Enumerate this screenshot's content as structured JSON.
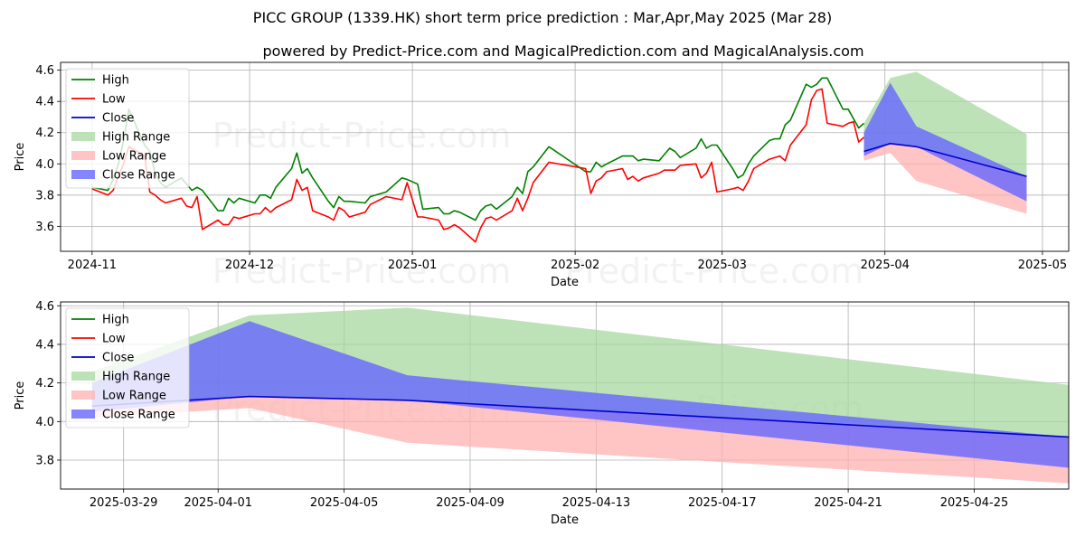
{
  "title": "PICC GROUP (1339.HK) short term price prediction : Mar,Apr,May 2025 (Mar 28)",
  "subtitle": "powered by Predict-Price.com and MagicalPrediction.com and MagicalAnalysis.com",
  "watermark": "Predict-Price.com",
  "colors": {
    "high": "#008000",
    "low": "#ff0000",
    "close": "#0000cc",
    "high_range": "#a8d8a0",
    "low_range": "#ffb0b0",
    "close_range": "#6666ff"
  },
  "legend": [
    "High",
    "Low",
    "Close",
    "High Range",
    "Low Range",
    "Close Range"
  ],
  "chart_data": [
    {
      "type": "line",
      "xlabel": "Date",
      "ylabel": "Price",
      "xlim": [
        "2024-10-26",
        "2025-05-06"
      ],
      "ylim": [
        3.44,
        4.65
      ],
      "grid": true,
      "legend_position": "upper-left",
      "x_ticks": [
        "2024-11-01",
        "2024-12-01",
        "2025-01-01",
        "2025-02-01",
        "2025-03-01",
        "2025-04-01",
        "2025-05-01"
      ],
      "x_tick_labels": [
        "2024-11",
        "2024-12",
        "2025-01",
        "2025-02",
        "2025-03",
        "2025-04",
        "2025-05"
      ],
      "y_ticks": [
        3.6,
        3.8,
        4.0,
        4.2,
        4.4,
        4.6
      ],
      "y_tick_labels": [
        "3.6",
        "3.8",
        "4.0",
        "4.2",
        "4.4",
        "4.6"
      ],
      "series": [
        {
          "name": "High",
          "x": [
            "2024-11-01",
            "2024-11-04",
            "2024-11-05",
            "2024-11-06",
            "2024-11-07",
            "2024-11-08",
            "2024-11-11",
            "2024-11-12",
            "2024-11-13",
            "2024-11-14",
            "2024-11-15",
            "2024-11-18",
            "2024-11-19",
            "2024-11-20",
            "2024-11-21",
            "2024-11-22",
            "2024-11-25",
            "2024-11-26",
            "2024-11-27",
            "2024-11-28",
            "2024-11-29",
            "2024-12-02",
            "2024-12-03",
            "2024-12-04",
            "2024-12-05",
            "2024-12-06",
            "2024-12-09",
            "2024-12-10",
            "2024-12-11",
            "2024-12-12",
            "2024-12-13",
            "2024-12-16",
            "2024-12-17",
            "2024-12-18",
            "2024-12-19",
            "2024-12-20",
            "2024-12-23",
            "2024-12-24",
            "2024-12-27",
            "2024-12-30",
            "2024-12-31",
            "2025-01-02",
            "2025-01-03",
            "2025-01-06",
            "2025-01-07",
            "2025-01-08",
            "2025-01-09",
            "2025-01-10",
            "2025-01-13",
            "2025-01-14",
            "2025-01-15",
            "2025-01-16",
            "2025-01-17",
            "2025-01-20",
            "2025-01-21",
            "2025-01-22",
            "2025-01-23",
            "2025-01-24",
            "2025-01-27",
            "2025-02-03",
            "2025-02-04",
            "2025-02-05",
            "2025-02-06",
            "2025-02-07",
            "2025-02-10",
            "2025-02-11",
            "2025-02-12",
            "2025-02-13",
            "2025-02-14",
            "2025-02-17",
            "2025-02-18",
            "2025-02-19",
            "2025-02-20",
            "2025-02-21",
            "2025-02-24",
            "2025-02-25",
            "2025-02-26",
            "2025-02-27",
            "2025-02-28",
            "2025-03-03",
            "2025-03-04",
            "2025-03-05",
            "2025-03-06",
            "2025-03-07",
            "2025-03-10",
            "2025-03-11",
            "2025-03-12",
            "2025-03-13",
            "2025-03-14",
            "2025-03-17",
            "2025-03-18",
            "2025-03-19",
            "2025-03-20",
            "2025-03-21",
            "2025-03-24",
            "2025-03-25",
            "2025-03-26",
            "2025-03-27",
            "2025-03-28"
          ],
          "values": [
            3.85,
            3.83,
            3.9,
            4.0,
            4.15,
            4.35,
            4.12,
            4.08,
            3.94,
            3.88,
            3.85,
            3.91,
            3.87,
            3.83,
            3.85,
            3.83,
            3.7,
            3.7,
            3.78,
            3.75,
            3.78,
            3.75,
            3.8,
            3.8,
            3.78,
            3.85,
            3.97,
            4.07,
            3.94,
            3.97,
            3.91,
            3.76,
            3.72,
            3.79,
            3.76,
            3.76,
            3.75,
            3.79,
            3.82,
            3.91,
            3.9,
            3.87,
            3.71,
            3.72,
            3.68,
            3.68,
            3.7,
            3.69,
            3.64,
            3.7,
            3.73,
            3.74,
            3.71,
            3.79,
            3.85,
            3.81,
            3.95,
            3.98,
            4.11,
            3.95,
            3.95,
            4.01,
            3.98,
            4.0,
            4.05,
            4.05,
            4.05,
            4.02,
            4.03,
            4.02,
            4.06,
            4.1,
            4.08,
            4.04,
            4.1,
            4.16,
            4.1,
            4.12,
            4.12,
            3.97,
            3.91,
            3.93,
            4.0,
            4.05,
            4.15,
            4.16,
            4.16,
            4.25,
            4.28,
            4.51,
            4.49,
            4.51,
            4.55,
            4.55,
            4.35,
            4.35,
            4.29,
            4.23,
            4.26
          ]
        },
        {
          "name": "Low",
          "x": [
            "2024-11-01",
            "2024-11-04",
            "2024-11-05",
            "2024-11-06",
            "2024-11-07",
            "2024-11-08",
            "2024-11-11",
            "2024-11-12",
            "2024-11-13",
            "2024-11-14",
            "2024-11-15",
            "2024-11-18",
            "2024-11-19",
            "2024-11-20",
            "2024-11-21",
            "2024-11-22",
            "2024-11-25",
            "2024-11-26",
            "2024-11-27",
            "2024-11-28",
            "2024-11-29",
            "2024-12-02",
            "2024-12-03",
            "2024-12-04",
            "2024-12-05",
            "2024-12-06",
            "2024-12-09",
            "2024-12-10",
            "2024-12-11",
            "2024-12-12",
            "2024-12-13",
            "2024-12-16",
            "2024-12-17",
            "2024-12-18",
            "2024-12-19",
            "2024-12-20",
            "2024-12-23",
            "2024-12-24",
            "2024-12-27",
            "2024-12-30",
            "2024-12-31",
            "2025-01-02",
            "2025-01-03",
            "2025-01-06",
            "2025-01-07",
            "2025-01-08",
            "2025-01-09",
            "2025-01-10",
            "2025-01-13",
            "2025-01-14",
            "2025-01-15",
            "2025-01-16",
            "2025-01-17",
            "2025-01-20",
            "2025-01-21",
            "2025-01-22",
            "2025-01-23",
            "2025-01-24",
            "2025-01-27",
            "2025-02-03",
            "2025-02-04",
            "2025-02-05",
            "2025-02-06",
            "2025-02-07",
            "2025-02-10",
            "2025-02-11",
            "2025-02-12",
            "2025-02-13",
            "2025-02-14",
            "2025-02-17",
            "2025-02-18",
            "2025-02-19",
            "2025-02-20",
            "2025-02-21",
            "2025-02-24",
            "2025-02-25",
            "2025-02-26",
            "2025-02-27",
            "2025-02-28",
            "2025-03-03",
            "2025-03-04",
            "2025-03-05",
            "2025-03-06",
            "2025-03-07",
            "2025-03-10",
            "2025-03-11",
            "2025-03-12",
            "2025-03-13",
            "2025-03-14",
            "2025-03-17",
            "2025-03-18",
            "2025-03-19",
            "2025-03-20",
            "2025-03-21",
            "2025-03-24",
            "2025-03-25",
            "2025-03-26",
            "2025-03-27",
            "2025-03-28"
          ],
          "values": [
            3.84,
            3.8,
            3.83,
            3.92,
            4.0,
            4.11,
            4.05,
            3.82,
            3.8,
            3.77,
            3.75,
            3.78,
            3.73,
            3.72,
            3.79,
            3.58,
            3.64,
            3.61,
            3.61,
            3.66,
            3.65,
            3.68,
            3.68,
            3.72,
            3.69,
            3.72,
            3.77,
            3.9,
            3.83,
            3.85,
            3.7,
            3.66,
            3.64,
            3.72,
            3.7,
            3.66,
            3.69,
            3.74,
            3.79,
            3.77,
            3.88,
            3.66,
            3.66,
            3.64,
            3.58,
            3.59,
            3.61,
            3.59,
            3.5,
            3.59,
            3.65,
            3.66,
            3.64,
            3.7,
            3.78,
            3.7,
            3.78,
            3.88,
            4.01,
            3.97,
            3.81,
            3.89,
            3.91,
            3.95,
            3.97,
            3.9,
            3.92,
            3.89,
            3.91,
            3.94,
            3.96,
            3.96,
            3.96,
            3.99,
            4.0,
            3.91,
            3.94,
            4.01,
            3.82,
            3.84,
            3.85,
            3.83,
            3.89,
            3.97,
            4.03,
            4.04,
            4.05,
            4.02,
            4.12,
            4.25,
            4.41,
            4.47,
            4.48,
            4.26,
            4.24,
            4.26,
            4.27,
            4.14,
            4.17
          ]
        },
        {
          "name": "Close",
          "x": [
            "2025-03-28",
            "2025-04-02",
            "2025-04-07",
            "2025-04-28"
          ],
          "values": [
            4.08,
            4.13,
            4.11,
            3.92
          ]
        },
        {
          "name": "High Range",
          "x": [
            "2025-03-28",
            "2025-04-02",
            "2025-04-07",
            "2025-04-28"
          ],
          "upper": [
            4.26,
            4.55,
            4.59,
            4.19
          ],
          "lower": [
            4.08,
            4.13,
            4.11,
            3.92
          ]
        },
        {
          "name": "Low Range",
          "x": [
            "2025-03-28",
            "2025-04-02",
            "2025-04-07",
            "2025-04-28"
          ],
          "upper": [
            4.08,
            4.13,
            4.11,
            3.92
          ],
          "lower": [
            4.02,
            4.07,
            3.89,
            3.68
          ]
        },
        {
          "name": "Close Range",
          "x": [
            "2025-03-28",
            "2025-04-02",
            "2025-04-07",
            "2025-04-28"
          ],
          "upper": [
            4.2,
            4.52,
            4.24,
            3.92
          ],
          "lower": [
            4.05,
            4.13,
            4.11,
            3.76
          ]
        }
      ]
    },
    {
      "type": "line",
      "xlabel": "Date",
      "ylabel": "Price",
      "xlim": [
        "2025-03-27",
        "2025-04-28"
      ],
      "ylim": [
        3.65,
        4.62
      ],
      "grid": true,
      "legend_position": "upper-left",
      "x_ticks": [
        "2025-03-29",
        "2025-04-01",
        "2025-04-05",
        "2025-04-09",
        "2025-04-13",
        "2025-04-17",
        "2025-04-21",
        "2025-04-25"
      ],
      "x_tick_labels": [
        "2025-03-29",
        "2025-04-01",
        "2025-04-05",
        "2025-04-09",
        "2025-04-13",
        "2025-04-17",
        "2025-04-21",
        "2025-04-25"
      ],
      "y_ticks": [
        3.8,
        4.0,
        4.2,
        4.4,
        4.6
      ],
      "y_tick_labels": [
        "3.8",
        "4.0",
        "4.2",
        "4.4",
        "4.6"
      ],
      "series": [
        {
          "name": "Close",
          "x": [
            "2025-03-28",
            "2025-04-02",
            "2025-04-07",
            "2025-04-28"
          ],
          "values": [
            4.08,
            4.13,
            4.11,
            3.92
          ]
        },
        {
          "name": "High Range",
          "x": [
            "2025-03-28",
            "2025-04-02",
            "2025-04-07",
            "2025-04-28"
          ],
          "upper": [
            4.26,
            4.55,
            4.59,
            4.19
          ],
          "lower": [
            4.08,
            4.13,
            4.11,
            3.92
          ]
        },
        {
          "name": "Low Range",
          "x": [
            "2025-03-28",
            "2025-04-02",
            "2025-04-07",
            "2025-04-28"
          ],
          "upper": [
            4.08,
            4.13,
            4.11,
            3.92
          ],
          "lower": [
            4.02,
            4.07,
            3.89,
            3.68
          ]
        },
        {
          "name": "Close Range",
          "x": [
            "2025-03-28",
            "2025-04-02",
            "2025-04-07",
            "2025-04-28"
          ],
          "upper": [
            4.2,
            4.52,
            4.24,
            3.92
          ],
          "lower": [
            4.05,
            4.13,
            4.11,
            3.76
          ]
        }
      ]
    }
  ]
}
